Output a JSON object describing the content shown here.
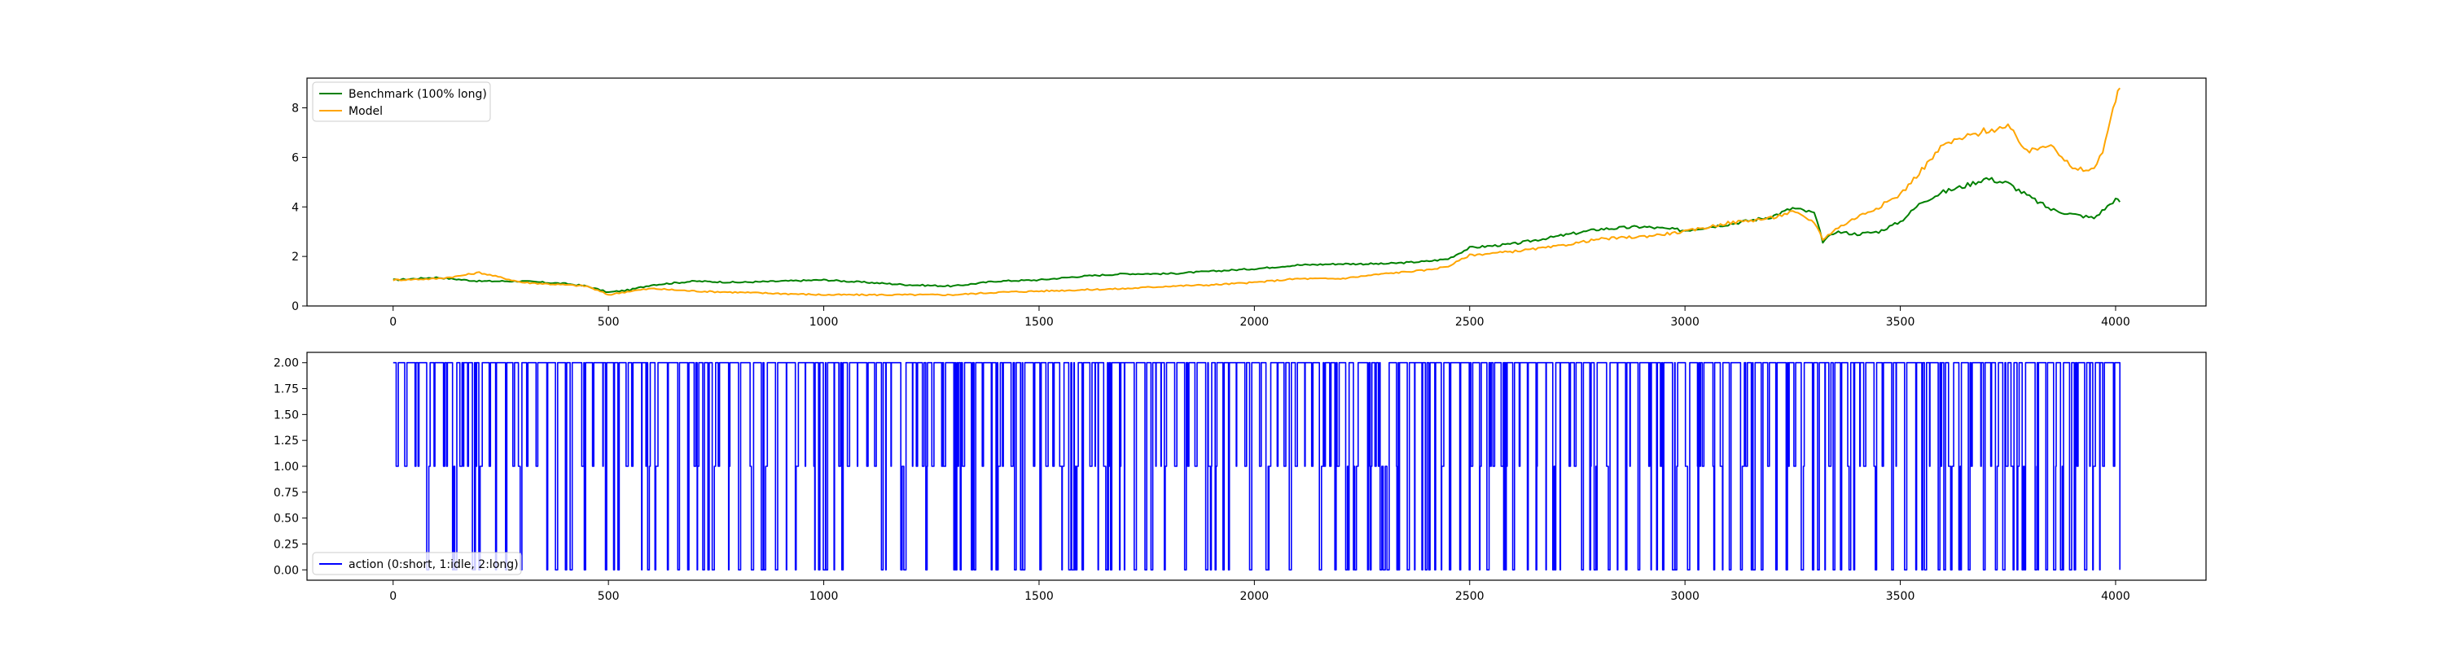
{
  "chart_data": [
    {
      "type": "line",
      "title": "",
      "xlabel": "",
      "ylabel": "",
      "xlim": [
        -200,
        4210
      ],
      "ylim": [
        0,
        9.2
      ],
      "xticks": [
        0,
        500,
        1000,
        1500,
        2000,
        2500,
        3000,
        3500,
        4000
      ],
      "yticks": [
        0,
        2,
        4,
        6,
        8
      ],
      "grid": false,
      "legend_position": "top-left",
      "series": [
        {
          "name": "Benchmark (100% long)",
          "color": "#008000",
          "x": [
            0,
            100,
            200,
            300,
            400,
            450,
            500,
            550,
            600,
            700,
            800,
            900,
            1000,
            1100,
            1200,
            1300,
            1400,
            1500,
            1600,
            1700,
            1800,
            1900,
            2000,
            2100,
            2200,
            2300,
            2400,
            2450,
            2500,
            2600,
            2700,
            2800,
            2900,
            3000,
            3100,
            3200,
            3250,
            3300,
            3320,
            3350,
            3400,
            3450,
            3500,
            3550,
            3600,
            3650,
            3700,
            3750,
            3800,
            3850,
            3900,
            3950,
            4000,
            4010
          ],
          "y": [
            1.05,
            1.15,
            1.0,
            1.0,
            0.9,
            0.8,
            0.55,
            0.65,
            0.85,
            1.0,
            0.95,
            1.0,
            1.05,
            0.95,
            0.85,
            0.8,
            1.0,
            1.05,
            1.2,
            1.3,
            1.3,
            1.4,
            1.5,
            1.65,
            1.7,
            1.7,
            1.8,
            1.9,
            2.35,
            2.5,
            2.8,
            3.1,
            3.2,
            3.05,
            3.3,
            3.6,
            3.95,
            3.75,
            2.6,
            3.0,
            2.9,
            3.0,
            3.4,
            4.2,
            4.6,
            4.85,
            5.15,
            4.95,
            4.4,
            3.9,
            3.7,
            3.55,
            4.3,
            4.2
          ]
        },
        {
          "name": "Model",
          "color": "#FFA500",
          "x": [
            0,
            100,
            150,
            200,
            250,
            300,
            400,
            450,
            500,
            550,
            600,
            700,
            800,
            900,
            1000,
            1100,
            1200,
            1300,
            1400,
            1500,
            1600,
            1700,
            1800,
            1900,
            2000,
            2100,
            2200,
            2300,
            2400,
            2450,
            2500,
            2600,
            2700,
            2800,
            2900,
            3000,
            3100,
            3200,
            3250,
            3300,
            3320,
            3350,
            3400,
            3450,
            3500,
            3550,
            3600,
            3650,
            3700,
            3750,
            3800,
            3850,
            3900,
            3950,
            3970,
            4000,
            4010
          ],
          "y": [
            1.05,
            1.1,
            1.2,
            1.35,
            1.15,
            0.95,
            0.85,
            0.8,
            0.45,
            0.6,
            0.7,
            0.6,
            0.55,
            0.5,
            0.45,
            0.45,
            0.45,
            0.45,
            0.55,
            0.6,
            0.65,
            0.7,
            0.8,
            0.85,
            0.95,
            1.1,
            1.1,
            1.3,
            1.45,
            1.6,
            2.05,
            2.2,
            2.4,
            2.7,
            2.8,
            3.0,
            3.35,
            3.55,
            3.8,
            3.4,
            2.7,
            3.1,
            3.6,
            4.0,
            4.5,
            5.5,
            6.5,
            6.8,
            7.1,
            7.2,
            6.2,
            6.6,
            5.5,
            5.5,
            6.3,
            8.3,
            8.8
          ]
        }
      ]
    },
    {
      "type": "line",
      "title": "",
      "xlabel": "",
      "ylabel": "",
      "xlim": [
        -200,
        4210
      ],
      "ylim": [
        -0.1,
        2.1
      ],
      "xticks": [
        0,
        500,
        1000,
        1500,
        2000,
        2500,
        3000,
        3500,
        4000
      ],
      "yticks": [
        0.0,
        0.25,
        0.5,
        0.75,
        1.0,
        1.25,
        1.5,
        1.75,
        2.0
      ],
      "ytick_labels": [
        "0.00",
        "0.25",
        "0.50",
        "0.75",
        "1.00",
        "1.25",
        "1.50",
        "1.75",
        "2.00"
      ],
      "grid": false,
      "legend_position": "bottom-left",
      "series": [
        {
          "name": "action (0:short, 1:idle, 2:long)",
          "color": "#0000FF",
          "x_range": [
            0,
            4010
          ],
          "values": [
            0,
            1,
            2
          ],
          "pattern": "step"
        }
      ]
    }
  ]
}
